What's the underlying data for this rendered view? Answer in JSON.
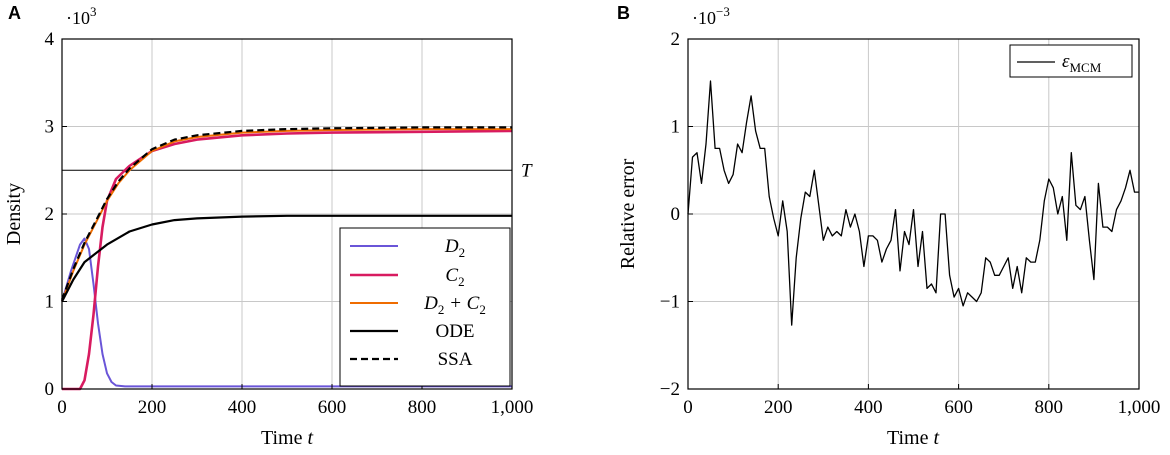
{
  "chart_data": [
    {
      "type": "line",
      "panel": "A",
      "title": "",
      "xlabel": "Time",
      "xlabel_var": "t",
      "ylabel": "Density",
      "y_scale_base": "·10",
      "y_scale_exp": "3",
      "xlim": [
        0,
        1000
      ],
      "ylim": [
        0,
        4
      ],
      "xticks": [
        0,
        200,
        400,
        600,
        800,
        1000
      ],
      "xtick_labels": [
        "0",
        "200",
        "400",
        "600",
        "800",
        "1,000"
      ],
      "yticks": [
        0,
        1,
        2,
        3,
        4
      ],
      "ytick_labels": [
        "0",
        "1",
        "2",
        "3",
        "4"
      ],
      "grid": true,
      "legend_position": "bottom-right",
      "threshold": {
        "label": "T",
        "value": 2.5
      },
      "series": [
        {
          "name": "D₂",
          "legend_main": "D",
          "legend_sub": "2",
          "color": "#6a55d8",
          "dashed": false,
          "x": [
            0,
            20,
            40,
            50,
            60,
            70,
            80,
            90,
            100,
            110,
            120,
            140,
            160,
            200,
            1000
          ],
          "y": [
            1.0,
            1.35,
            1.65,
            1.72,
            1.6,
            1.2,
            0.75,
            0.4,
            0.18,
            0.08,
            0.04,
            0.03,
            0.03,
            0.03,
            0.03
          ]
        },
        {
          "name": "C₂",
          "legend_main": "C",
          "legend_sub": "2",
          "color": "#d81b60",
          "dashed": false,
          "x": [
            0,
            40,
            50,
            60,
            70,
            80,
            90,
            100,
            120,
            150,
            200,
            250,
            300,
            400,
            500,
            600,
            800,
            1000
          ],
          "y": [
            0.0,
            0.0,
            0.1,
            0.4,
            0.85,
            1.4,
            1.85,
            2.15,
            2.4,
            2.55,
            2.72,
            2.8,
            2.85,
            2.9,
            2.92,
            2.93,
            2.94,
            2.95
          ]
        },
        {
          "name": "D₂ + C₂",
          "legend_main": "D",
          "legend_sub": "2",
          "legend_mid": " + C",
          "legend_sub2": "2",
          "color": "#ef6c00",
          "dashed": false,
          "x": [
            0,
            25,
            50,
            75,
            100,
            125,
            150,
            200,
            250,
            300,
            400,
            500,
            600,
            800,
            1000
          ],
          "y": [
            1.0,
            1.35,
            1.65,
            1.9,
            2.15,
            2.35,
            2.5,
            2.72,
            2.83,
            2.88,
            2.93,
            2.95,
            2.96,
            2.97,
            2.97
          ]
        },
        {
          "name": "ODE",
          "legend_main": "ODE",
          "color": "#000000",
          "dashed": false,
          "x": [
            0,
            25,
            50,
            100,
            150,
            200,
            250,
            300,
            400,
            500,
            600,
            800,
            1000
          ],
          "y": [
            1.0,
            1.25,
            1.45,
            1.65,
            1.8,
            1.88,
            1.93,
            1.95,
            1.97,
            1.98,
            1.98,
            1.98,
            1.98
          ]
        },
        {
          "name": "SSA",
          "legend_main": "SSA",
          "color": "#000000",
          "dashed": true,
          "x": [
            0,
            25,
            50,
            75,
            100,
            125,
            150,
            200,
            250,
            300,
            400,
            500,
            600,
            800,
            1000
          ],
          "y": [
            1.02,
            1.37,
            1.67,
            1.92,
            2.17,
            2.37,
            2.52,
            2.74,
            2.85,
            2.9,
            2.95,
            2.97,
            2.98,
            2.99,
            2.99
          ]
        }
      ]
    },
    {
      "type": "line",
      "panel": "B",
      "title": "",
      "xlabel": "Time",
      "xlabel_var": "t",
      "ylabel": "Relative error",
      "y_scale_base": "·10",
      "y_scale_exp": "−3",
      "xlim": [
        0,
        1000
      ],
      "ylim": [
        -2,
        2
      ],
      "xticks": [
        0,
        200,
        400,
        600,
        800,
        1000
      ],
      "xtick_labels": [
        "0",
        "200",
        "400",
        "600",
        "800",
        "1,000"
      ],
      "yticks": [
        -2,
        -1,
        0,
        1,
        2
      ],
      "ytick_labels": [
        "−2",
        "−1",
        "0",
        "1",
        "2"
      ],
      "grid": true,
      "legend_position": "top-right",
      "series": [
        {
          "name": "εMCM",
          "legend_main": "ε",
          "legend_sub": "MCM",
          "color": "#000000",
          "x": [
            0,
            10,
            20,
            30,
            40,
            50,
            60,
            70,
            80,
            90,
            100,
            110,
            120,
            130,
            140,
            150,
            160,
            170,
            180,
            190,
            200,
            210,
            220,
            230,
            240,
            250,
            260,
            270,
            280,
            290,
            300,
            310,
            320,
            330,
            340,
            350,
            360,
            370,
            380,
            390,
            400,
            410,
            420,
            430,
            440,
            450,
            460,
            470,
            480,
            490,
            500,
            510,
            520,
            530,
            540,
            550,
            560,
            570,
            580,
            590,
            600,
            610,
            620,
            630,
            640,
            650,
            660,
            670,
            680,
            690,
            700,
            710,
            720,
            730,
            740,
            750,
            760,
            770,
            780,
            790,
            800,
            810,
            820,
            830,
            840,
            850,
            860,
            870,
            880,
            890,
            900,
            910,
            920,
            930,
            940,
            950,
            960,
            970,
            980,
            990,
            1000
          ],
          "y": [
            0.0,
            0.65,
            0.7,
            0.35,
            0.8,
            1.52,
            0.75,
            0.75,
            0.5,
            0.35,
            0.45,
            0.8,
            0.7,
            1.05,
            1.35,
            0.95,
            0.75,
            0.75,
            0.2,
            -0.05,
            -0.25,
            0.15,
            -0.2,
            -1.27,
            -0.5,
            -0.05,
            0.25,
            0.2,
            0.5,
            0.1,
            -0.3,
            -0.15,
            -0.25,
            -0.2,
            -0.25,
            0.05,
            -0.15,
            0.0,
            -0.2,
            -0.6,
            -0.25,
            -0.25,
            -0.3,
            -0.55,
            -0.4,
            -0.3,
            0.05,
            -0.65,
            -0.2,
            -0.35,
            0.05,
            -0.6,
            -0.2,
            -0.85,
            -0.8,
            -0.9,
            0.0,
            0.0,
            -0.7,
            -0.95,
            -0.85,
            -1.05,
            -0.9,
            -0.95,
            -1.0,
            -0.9,
            -0.5,
            -0.55,
            -0.7,
            -0.7,
            -0.6,
            -0.5,
            -0.85,
            -0.6,
            -0.9,
            -0.5,
            -0.55,
            -0.55,
            -0.3,
            0.15,
            0.4,
            0.3,
            0.0,
            0.2,
            -0.3,
            0.7,
            0.1,
            0.05,
            0.2,
            -0.3,
            -0.75,
            0.35,
            -0.15,
            -0.15,
            -0.2,
            0.05,
            0.15,
            0.3,
            0.5,
            0.25,
            0.25
          ]
        }
      ]
    }
  ]
}
